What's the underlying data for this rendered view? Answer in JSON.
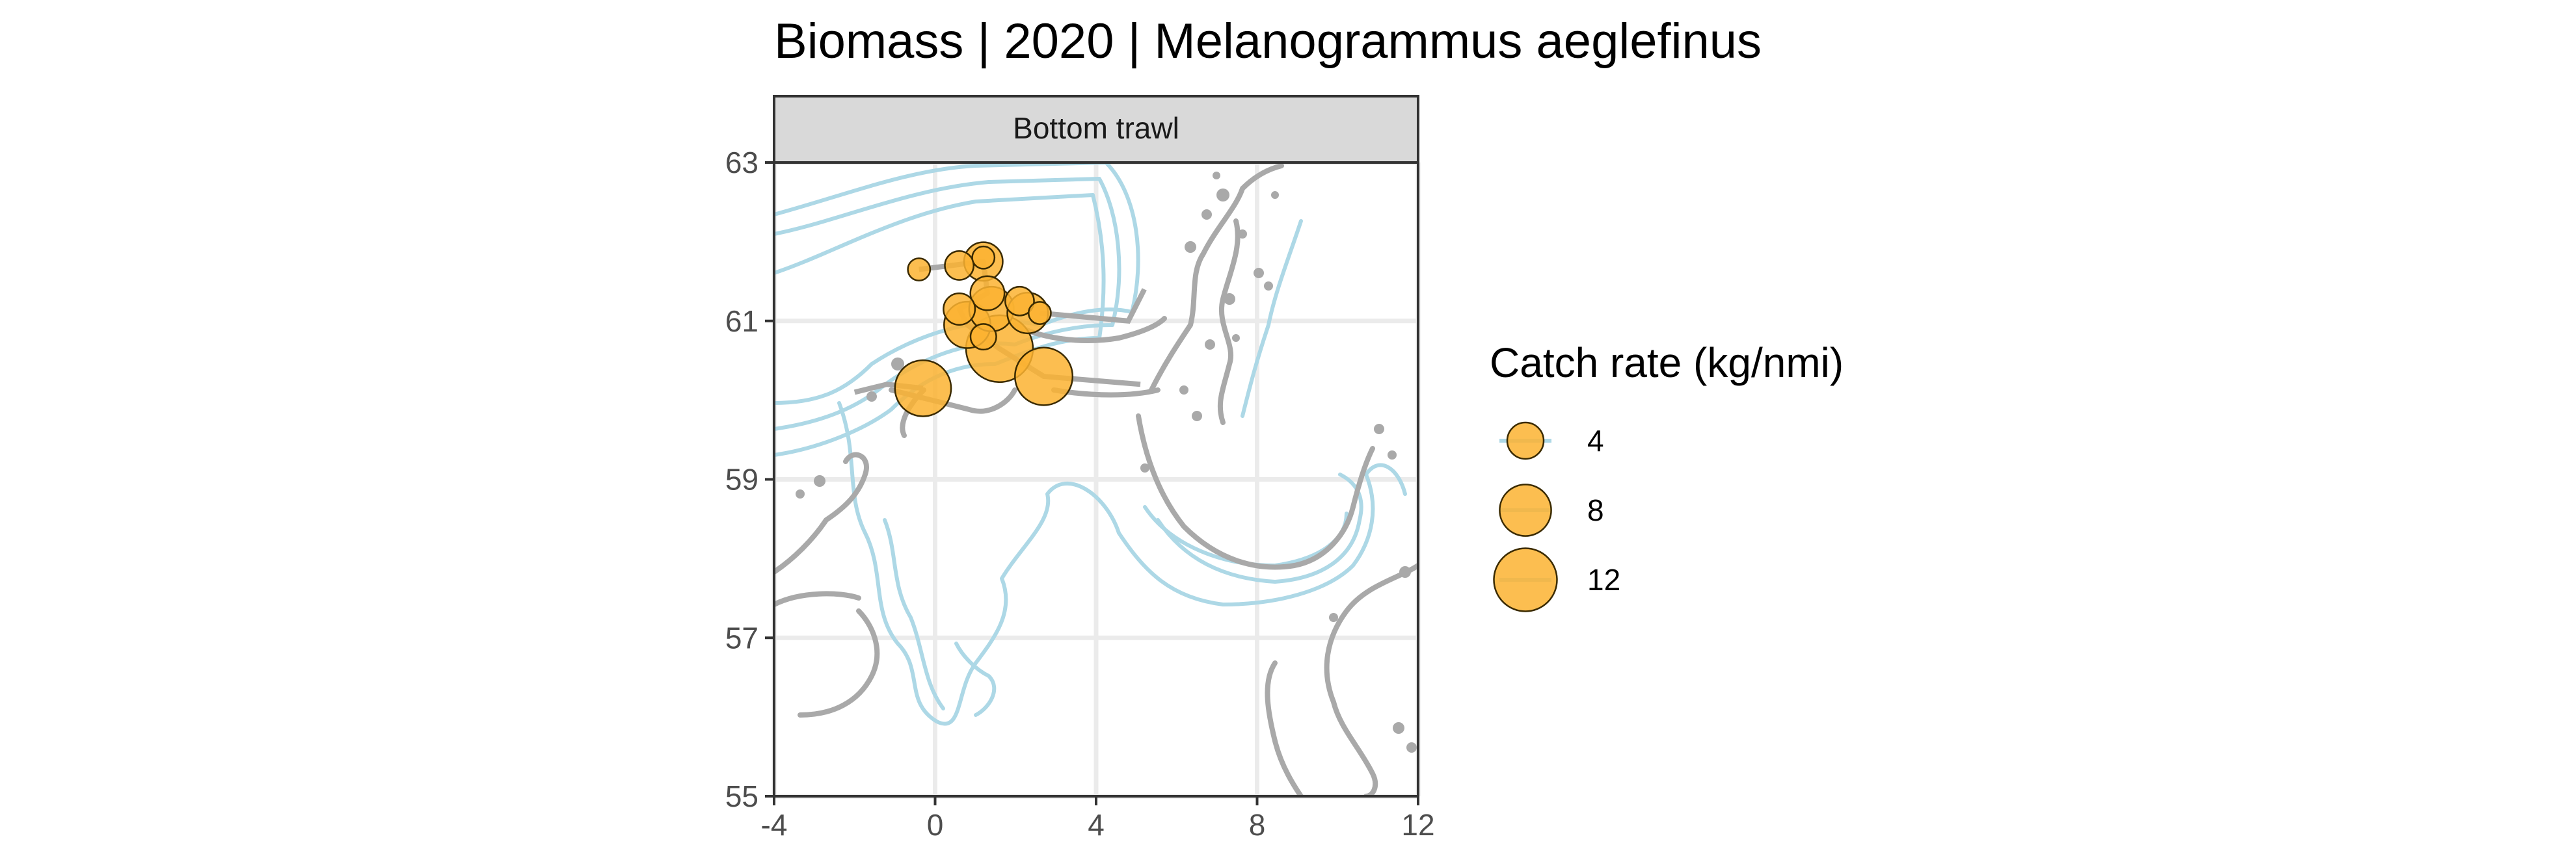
{
  "chart_data": {
    "type": "scatter",
    "title": "Biomass | 2020 | Melanogrammus aeglefinus",
    "facet_label": "Bottom trawl",
    "xlabel": "",
    "ylabel": "",
    "xlim": [
      -4,
      12
    ],
    "ylim": [
      55,
      63
    ],
    "x_ticks": [
      -4,
      0,
      4,
      8,
      12
    ],
    "y_ticks": [
      55,
      57,
      59,
      61,
      63
    ],
    "x_tick_labels": [
      "-4",
      "0",
      "4",
      "8",
      "12"
    ],
    "y_tick_labels": [
      "55",
      "57",
      "59",
      "61",
      "63"
    ],
    "grid": true,
    "legend": {
      "title": "Catch rate (kg/nmi)",
      "placement": "right",
      "entries": [
        {
          "label": "4",
          "value": 4
        },
        {
          "label": "8",
          "value": 8
        },
        {
          "label": "12",
          "value": 12
        }
      ]
    },
    "points": [
      {
        "lon": -0.4,
        "lat": 61.65,
        "catch": 1.5
      },
      {
        "lon": 0.6,
        "lat": 61.7,
        "catch": 2.5
      },
      {
        "lon": 1.2,
        "lat": 61.75,
        "catch": 4.5
      },
      {
        "lon": 1.2,
        "lat": 61.8,
        "catch": 1.5
      },
      {
        "lon": 1.3,
        "lat": 61.35,
        "catch": 3.5
      },
      {
        "lon": 2.1,
        "lat": 61.25,
        "catch": 2.5
      },
      {
        "lon": 2.6,
        "lat": 61.1,
        "catch": 1.5
      },
      {
        "lon": 0.6,
        "lat": 61.15,
        "catch": 3.0
      },
      {
        "lon": 1.4,
        "lat": 61.15,
        "catch": 6.0
      },
      {
        "lon": 2.3,
        "lat": 61.1,
        "catch": 5.0
      },
      {
        "lon": 0.8,
        "lat": 60.95,
        "catch": 6.5
      },
      {
        "lon": 1.2,
        "lat": 60.8,
        "catch": 2.0
      },
      {
        "lon": 1.6,
        "lat": 60.65,
        "catch": 13.5
      },
      {
        "lon": 2.7,
        "lat": 60.3,
        "catch": 10.0
      },
      {
        "lon": -0.3,
        "lat": 60.15,
        "catch": 9.5
      }
    ],
    "colors": {
      "point_fill": "#FBB331",
      "point_stroke": "#3a2a00",
      "coastline": "#A9A9A9",
      "depth_contour": "#ADD8E6",
      "grid": "#EBEBEB",
      "strip_fill": "#D9D9D9"
    }
  }
}
